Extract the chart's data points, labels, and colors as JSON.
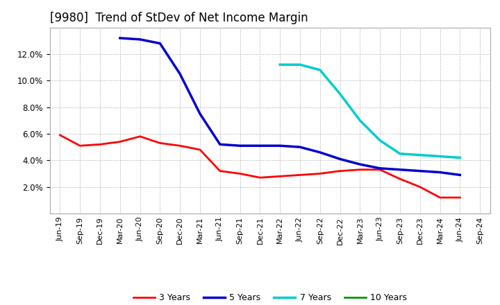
{
  "title": "[9980]  Trend of StDev of Net Income Margin",
  "title_fontsize": 12,
  "background_color": "#ffffff",
  "plot_bg_color": "#ffffff",
  "grid_color": "#999999",
  "legend_labels": [
    "3 Years",
    "5 Years",
    "7 Years",
    "10 Years"
  ],
  "legend_colors": [
    "#ff0000",
    "#0000cc",
    "#00cccc",
    "#009900"
  ],
  "x_labels": [
    "Jun-19",
    "Sep-19",
    "Dec-19",
    "Mar-20",
    "Jun-20",
    "Sep-20",
    "Dec-20",
    "Mar-21",
    "Jun-21",
    "Sep-21",
    "Dec-21",
    "Mar-22",
    "Jun-22",
    "Sep-22",
    "Dec-22",
    "Mar-23",
    "Jun-23",
    "Sep-23",
    "Dec-23",
    "Mar-24",
    "Jun-24",
    "Sep-24"
  ],
  "series_3y": [
    5.9,
    5.1,
    5.2,
    5.4,
    5.8,
    5.3,
    5.1,
    4.8,
    3.2,
    3.0,
    2.7,
    2.8,
    2.9,
    3.0,
    3.2,
    3.3,
    3.3,
    2.6,
    2.0,
    1.2,
    1.2,
    null
  ],
  "series_5y": [
    null,
    null,
    null,
    13.2,
    13.1,
    12.8,
    10.5,
    7.5,
    5.2,
    5.1,
    5.1,
    5.1,
    5.0,
    4.6,
    4.1,
    3.7,
    3.4,
    3.3,
    3.2,
    3.1,
    2.9,
    null
  ],
  "series_7y": [
    null,
    null,
    null,
    null,
    null,
    null,
    null,
    null,
    null,
    null,
    null,
    11.2,
    11.2,
    10.8,
    9.0,
    7.0,
    5.5,
    4.5,
    4.4,
    4.3,
    4.2,
    null
  ],
  "series_10y": [
    null,
    null,
    null,
    null,
    null,
    null,
    null,
    null,
    null,
    null,
    null,
    null,
    null,
    null,
    null,
    null,
    null,
    null,
    null,
    null,
    null,
    null
  ],
  "ylim": [
    0,
    14.0
  ],
  "ytick_values": [
    2,
    4,
    6,
    8,
    10,
    12
  ],
  "linewidths": [
    2.0,
    2.5,
    2.5,
    2.0
  ]
}
